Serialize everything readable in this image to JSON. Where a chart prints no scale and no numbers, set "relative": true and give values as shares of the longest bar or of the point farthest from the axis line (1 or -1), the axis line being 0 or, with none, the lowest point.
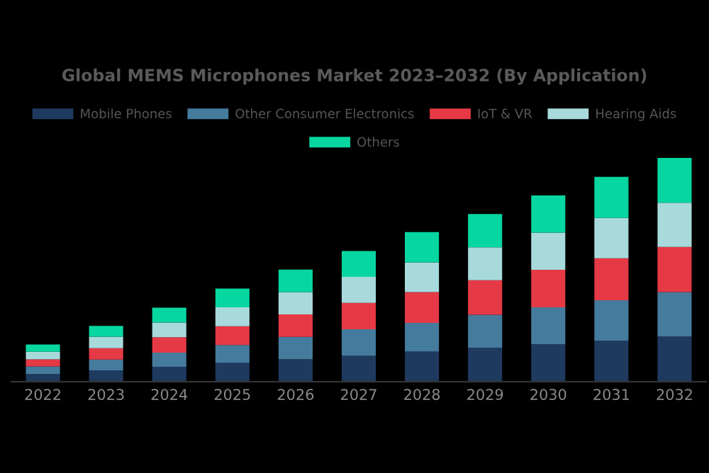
{
  "chart_data": {
    "type": "bar",
    "title": "Global MEMS Microphones Market 2023–2032 (By Application)",
    "categories": [
      "2022",
      "2023",
      "2024",
      "2025",
      "2026",
      "2027",
      "2028",
      "2029",
      "2030",
      "2031",
      "2032"
    ],
    "stacked": true,
    "relative": true,
    "legend": "top",
    "grid": false,
    "series": [
      {
        "name": "Mobile Phones",
        "color": "#1f3a5f",
        "values": [
          0.034,
          0.051,
          0.067,
          0.084,
          0.101,
          0.116,
          0.135,
          0.152,
          0.168,
          0.183,
          0.202
        ]
      },
      {
        "name": "Other Consumer Electronics",
        "color": "#457b9d",
        "values": [
          0.034,
          0.048,
          0.063,
          0.08,
          0.099,
          0.118,
          0.128,
          0.147,
          0.164,
          0.181,
          0.198
        ]
      },
      {
        "name": "IoT & VR",
        "color": "#e63946",
        "values": [
          0.032,
          0.051,
          0.069,
          0.084,
          0.101,
          0.118,
          0.137,
          0.154,
          0.168,
          0.187,
          0.202
        ]
      },
      {
        "name": "Hearing Aids",
        "color": "#a8dadc",
        "values": [
          0.034,
          0.051,
          0.065,
          0.084,
          0.099,
          0.116,
          0.133,
          0.147,
          0.166,
          0.181,
          0.198
        ]
      },
      {
        "name": "Others",
        "color": "#06d6a0",
        "values": [
          0.032,
          0.048,
          0.067,
          0.084,
          0.101,
          0.116,
          0.135,
          0.149,
          0.166,
          0.183,
          0.2
        ]
      }
    ]
  }
}
